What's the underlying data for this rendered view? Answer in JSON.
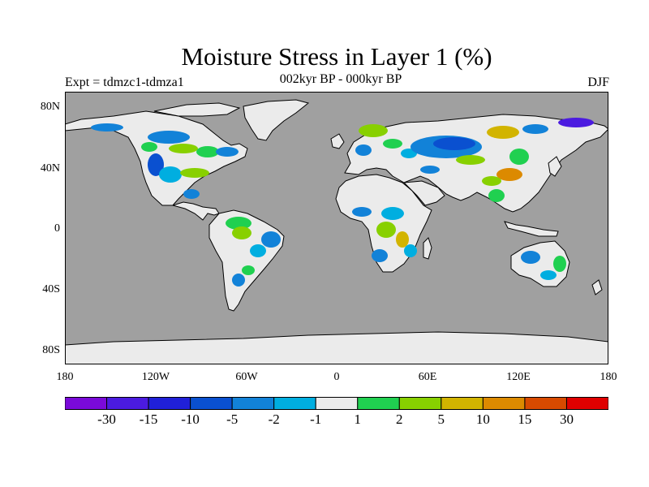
{
  "header": {
    "title": "Moisture Stress in Layer 1 (%)",
    "experiment": "Expt = tdmzc1-tdmza1",
    "period": "002kyr BP - 000kyr BP",
    "season": "DJF"
  },
  "map": {
    "projection": "cylindrical equidistant",
    "ocean_color": "#a0a0a0",
    "land_base_color": "#ebebeb",
    "coastline_color": "#000000",
    "lon_range": [
      -180,
      180
    ],
    "lat_range": [
      -90,
      90
    ]
  },
  "axes": {
    "y_ticks": [
      "80N",
      "40N",
      "0",
      "40S",
      "80S"
    ],
    "x_ticks": [
      "180",
      "120W",
      "60W",
      "0",
      "60E",
      "120E",
      "180"
    ]
  },
  "legend": {
    "colors": [
      "#7a0ad9",
      "#4b1be0",
      "#2020d8",
      "#0a50d0",
      "#1282d8",
      "#00aee0",
      "#ebebeb",
      "#20d050",
      "#88d000",
      "#d2b400",
      "#dc8a00",
      "#d84a00",
      "#e00000"
    ],
    "labels": [
      "-30",
      "-15",
      "-10",
      "-5",
      "-2",
      "-1",
      "1",
      "2",
      "5",
      "10",
      "15",
      "30"
    ]
  }
}
